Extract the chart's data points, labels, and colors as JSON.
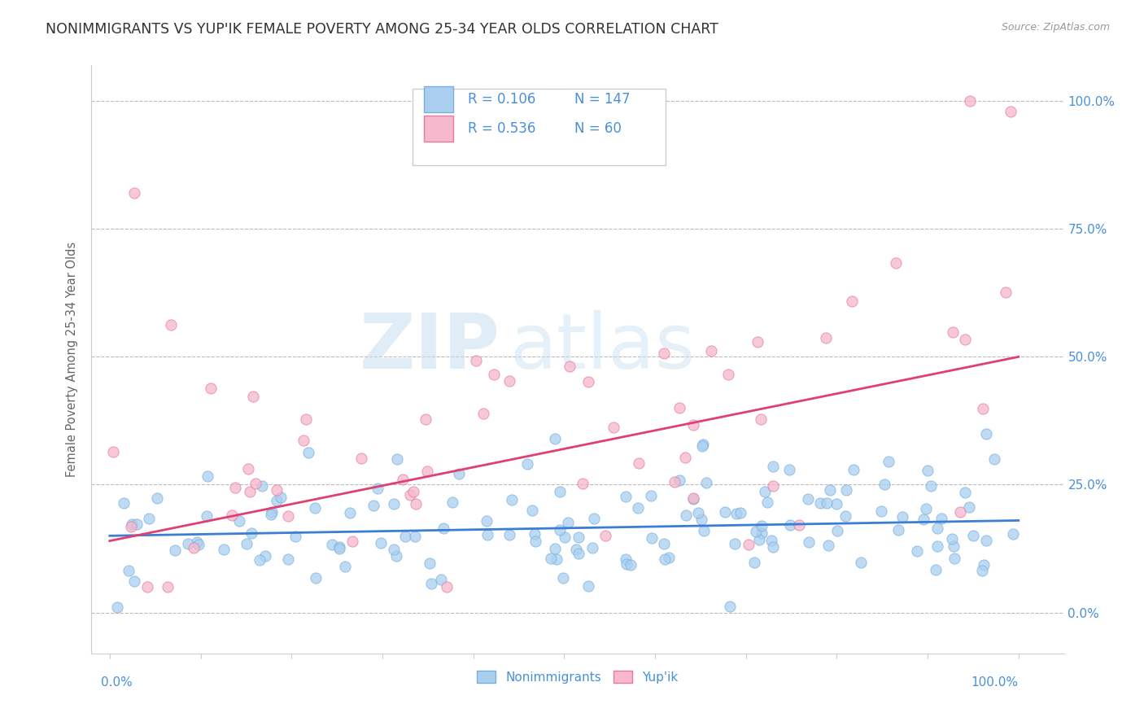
{
  "title": "NONIMMIGRANTS VS YUP'IK FEMALE POVERTY AMONG 25-34 YEAR OLDS CORRELATION CHART",
  "source_text": "Source: ZipAtlas.com",
  "ylabel": "Female Poverty Among 25-34 Year Olds",
  "watermark_zip": "ZIP",
  "watermark_atlas": "atlas",
  "background_color": "#ffffff",
  "title_color": "#333333",
  "title_fontsize": 12.5,
  "axis_label_color": "#666666",
  "tick_label_color": "#4a90d9",
  "grid_color": "#bbbbbb",
  "legend_text_color": "#4a90d9",
  "nonimmigrants_color": "#aacff0",
  "nonimmigrants_edge": "#7ab0e0",
  "yupik_color": "#f5b8cc",
  "yupik_edge": "#e87aa0",
  "line_nonimmigrants_color": "#3a7fd5",
  "line_yupik_color": "#e04070",
  "R_nonimmigrants": 0.106,
  "N_nonimmigrants": 147,
  "R_yupik": 0.536,
  "N_yupik": 60,
  "seed": 12345,
  "xlim": [
    0,
    100
  ],
  "ylim": [
    0,
    100
  ],
  "yticks": [
    0,
    25,
    50,
    75,
    100
  ]
}
